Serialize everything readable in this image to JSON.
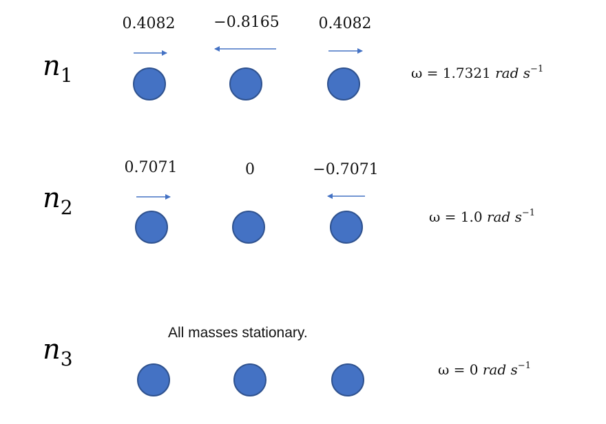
{
  "modes": [
    {
      "label": "n",
      "subscript": "1",
      "amplitudes": [
        "0.4082",
        "−0.8165",
        "0.4082"
      ],
      "arrow_directions": [
        "right",
        "left",
        "right"
      ],
      "omega": {
        "prefix": "ω = 1.7321 ",
        "unit": "rad s",
        "exponent": "−1"
      }
    },
    {
      "label": "n",
      "subscript": "2",
      "amplitudes": [
        "0.7071",
        "0",
        "−0.7071"
      ],
      "arrow_directions": [
        "right",
        "none",
        "left"
      ],
      "omega": {
        "prefix": "ω = 1.0 ",
        "unit": "rad s",
        "exponent": "−1"
      }
    },
    {
      "label": "n",
      "subscript": "3",
      "note": "All masses stationary.",
      "arrow_directions": [
        "none",
        "none",
        "none"
      ],
      "omega": {
        "prefix": "ω = 0 ",
        "unit": "rad s",
        "exponent": "−1"
      }
    }
  ],
  "colors": {
    "mass_fill": "#4472c4",
    "mass_border": "#2f528f",
    "arrow": "#4472c4"
  }
}
